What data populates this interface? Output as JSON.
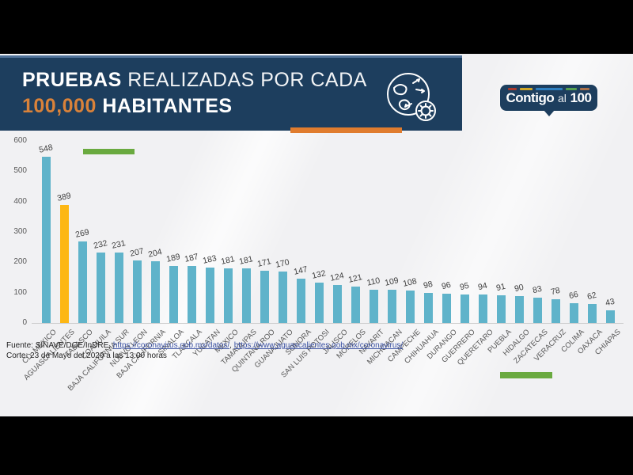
{
  "header": {
    "title_bold": "PRUEBAS",
    "title_rest": " REALIZADAS POR CADA",
    "title_accent": "100,000",
    "title_rest2": " HABITANTES",
    "panel_color": "#1d3e5e",
    "accent_bar_color": "#e07c2e"
  },
  "logo": {
    "word_bold1": "Contigo",
    "word_mid": "al",
    "word_bold2": "100",
    "dash_colors": [
      "#a93a2e",
      "#d0a728",
      "#2e7fc0",
      "#56a050",
      "#a9714b"
    ]
  },
  "chart_data": {
    "type": "bar",
    "title": "Pruebas realizadas por cada 100,000 habitantes",
    "categories": [
      "CD. MEXICO",
      "AGUASCALIENTES",
      "TABASCO",
      "COAHUILA",
      "BAJA CALIFORNIA SUR",
      "NUEVO LEON",
      "BAJA CALIFORNIA",
      "SINALOA",
      "TLAXCALA",
      "YUCATAN",
      "MEXICO",
      "TAMAULIPAS",
      "QUINTANA ROO",
      "GUANAJUATO",
      "SONORA",
      "SAN LUIS POTOSI",
      "JALISCO",
      "MORELOS",
      "NAYARIT",
      "MICHOACAN",
      "CAMPECHE",
      "CHIHUAHUA",
      "DURANGO",
      "GUERRERO",
      "QUERETARO",
      "PUEBLA",
      "HIDALGO",
      "ZACATECAS",
      "VERACRUZ",
      "COLIMA",
      "OAXACA",
      "CHIAPAS"
    ],
    "values": [
      548,
      389,
      269,
      232,
      231,
      207,
      204,
      189,
      187,
      183,
      181,
      181,
      171,
      170,
      147,
      132,
      124,
      121,
      110,
      109,
      108,
      98,
      96,
      95,
      94,
      91,
      90,
      83,
      78,
      66,
      62,
      43
    ],
    "highlight_index": 1,
    "bar_color": "#5fb3ca",
    "highlight_color": "#fdb714",
    "ylim": [
      0,
      600
    ],
    "yticks": [
      0,
      100,
      200,
      300,
      400,
      500,
      600
    ],
    "grid": false,
    "legend": false,
    "annotation_color": "#6aaa3f"
  },
  "footer": {
    "fuente_prefix": "Fuente: SINAVE/DGE/InDRE, ",
    "link1": "https://coronavirus.gob.mx/datos/",
    "separator": ", ",
    "link2": "https://www.aguascalientes.gob.mx/coronavirus/",
    "corte": "Corte: 23 de Mayo del 2020 a las 13:00 horas"
  }
}
